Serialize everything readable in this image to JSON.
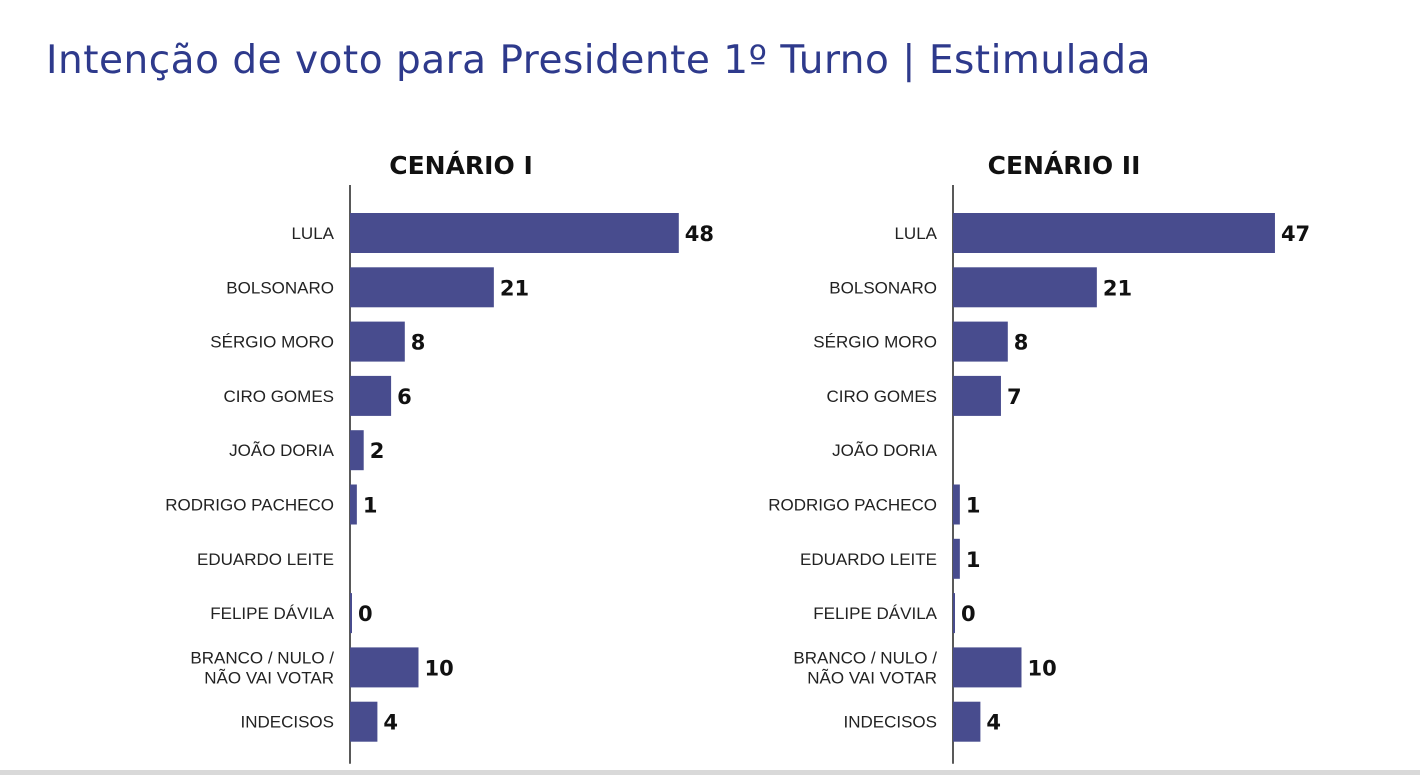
{
  "page": {
    "title": "Intenção de voto para Presidente 1º Turno | Estimulada"
  },
  "colors": {
    "bar": "#484c8e",
    "title": "#2e3a8c",
    "axis": "#222222"
  },
  "chart_data": [
    {
      "type": "bar",
      "orientation": "horizontal",
      "title": "CENÁRIO I",
      "categories": [
        [
          "LULA"
        ],
        [
          "BOLSONARO"
        ],
        [
          "SÉRGIO MORO"
        ],
        [
          "CIRO GOMES"
        ],
        [
          "JOÃO DORIA"
        ],
        [
          "RODRIGO PACHECO"
        ],
        [
          "EDUARDO LEITE"
        ],
        [
          "FELIPE DÁVILA"
        ],
        [
          "BRANCO / NULO /",
          "NÃO VAI VOTAR"
        ],
        [
          "INDECISOS"
        ]
      ],
      "values": [
        48,
        21,
        8,
        6,
        2,
        1,
        null,
        0,
        10,
        4
      ],
      "value_labels": [
        "48",
        "21",
        "8",
        "6",
        "2",
        "1",
        "",
        "0",
        "10",
        "4"
      ],
      "xlim": [
        0,
        48
      ]
    },
    {
      "type": "bar",
      "orientation": "horizontal",
      "title": "CENÁRIO II",
      "categories": [
        [
          "LULA"
        ],
        [
          "BOLSONARO"
        ],
        [
          "SÉRGIO MORO"
        ],
        [
          "CIRO GOMES"
        ],
        [
          "JOÃO DORIA"
        ],
        [
          "RODRIGO PACHECO"
        ],
        [
          "EDUARDO LEITE"
        ],
        [
          "FELIPE DÁVILA"
        ],
        [
          "BRANCO / NULO /",
          "NÃO VAI VOTAR"
        ],
        [
          "INDECISOS"
        ]
      ],
      "values": [
        47,
        21,
        8,
        7,
        null,
        1,
        1,
        0,
        10,
        4
      ],
      "value_labels": [
        "47",
        "21",
        "8",
        "7",
        "",
        "1",
        "1",
        "0",
        "10",
        "4"
      ],
      "xlim": [
        0,
        48
      ]
    }
  ]
}
